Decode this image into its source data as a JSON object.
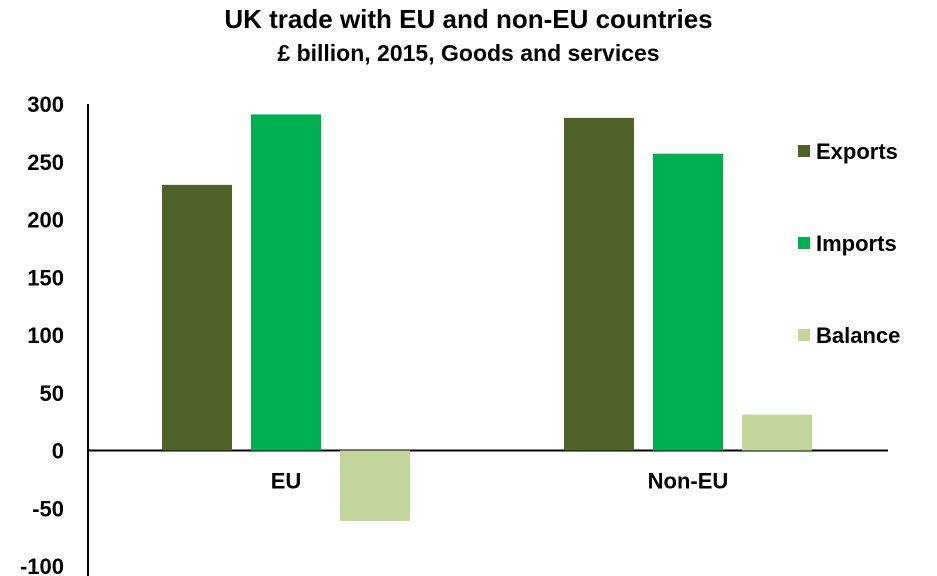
{
  "chart_data": {
    "type": "bar",
    "title": "UK trade with EU and non-EU countries",
    "subtitle": "£ billion, 2015, Goods and services",
    "categories": [
      "EU",
      "Non-EU"
    ],
    "series": [
      {
        "name": "Exports",
        "values": [
          230,
          288
        ],
        "color": "#4f6228"
      },
      {
        "name": "Imports",
        "values": [
          291,
          257
        ],
        "color": "#00b050"
      },
      {
        "name": "Balance",
        "values": [
          -61,
          31
        ],
        "color": "#c3d69b"
      }
    ],
    "ylim": [
      -100,
      300
    ],
    "yticks": [
      "300",
      "250",
      "200",
      "150",
      "100",
      "50",
      "0",
      "-50",
      "-100"
    ],
    "legend_position": "right",
    "grid": false
  }
}
